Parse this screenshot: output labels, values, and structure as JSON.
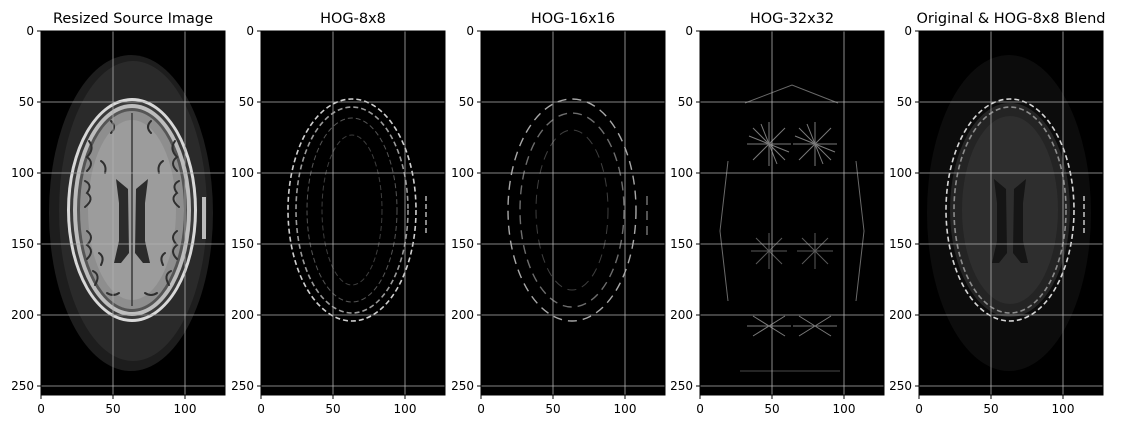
{
  "figure": {
    "panels": [
      {
        "title": "Resized Source Image",
        "image": "brain-mri-axial-slice",
        "x_ticks": [
          "0",
          "50",
          "100"
        ],
        "y_ticks": [
          "0",
          "50",
          "100",
          "150",
          "200",
          "250"
        ]
      },
      {
        "title": "HOG-8x8",
        "image": "hog-visualization-8x8",
        "x_ticks": [
          "0",
          "50",
          "100"
        ],
        "y_ticks": [
          "0",
          "50",
          "100",
          "150",
          "200",
          "250"
        ]
      },
      {
        "title": "HOG-16x16",
        "image": "hog-visualization-16x16",
        "x_ticks": [
          "0",
          "50",
          "100"
        ],
        "y_ticks": [
          "0",
          "50",
          "100",
          "150",
          "200",
          "250"
        ]
      },
      {
        "title": "HOG-32x32",
        "image": "hog-visualization-32x32",
        "x_ticks": [
          "0",
          "50",
          "100"
        ],
        "y_ticks": [
          "0",
          "50",
          "100",
          "150",
          "200",
          "250"
        ]
      },
      {
        "title": "Original & HOG-8x8 Blend",
        "image": "blend-original-and-hog-8x8",
        "x_ticks": [
          "0",
          "50",
          "100"
        ],
        "y_ticks": [
          "0",
          "50",
          "100",
          "150",
          "200",
          "250"
        ]
      }
    ],
    "grid": true,
    "colors": {
      "background": "#000000",
      "grid": "#b0b0b0"
    }
  }
}
